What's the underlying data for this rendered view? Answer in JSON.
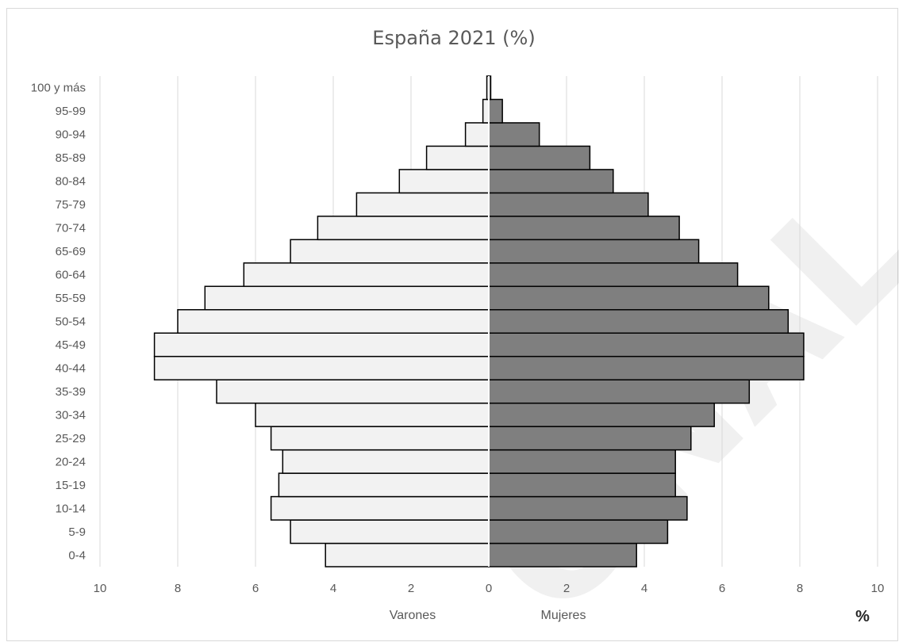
{
  "chart_data": {
    "type": "bar",
    "title": "España 2021 (%)",
    "categories": [
      "0-4",
      "5-9",
      "10-14",
      "15-19",
      "20-24",
      "25-29",
      "30-34",
      "35-39",
      "40-44",
      "45-49",
      "50-54",
      "55-59",
      "60-64",
      "65-69",
      "70-74",
      "75-79",
      "80-84",
      "85-89",
      "90-94",
      "95-99",
      "100 y más"
    ],
    "series": [
      {
        "name": "Varones",
        "color": "#f2f2f2",
        "values": [
          4.2,
          5.1,
          5.6,
          5.4,
          5.3,
          5.6,
          6.0,
          7.0,
          8.6,
          8.6,
          8.0,
          7.3,
          6.3,
          5.1,
          4.4,
          3.4,
          2.3,
          1.6,
          0.6,
          0.15,
          0.05
        ]
      },
      {
        "name": "Mujeres",
        "color": "#7f7f7f",
        "values": [
          3.8,
          4.6,
          5.1,
          4.8,
          4.8,
          5.2,
          5.8,
          6.7,
          8.1,
          8.1,
          7.7,
          7.2,
          6.4,
          5.4,
          4.9,
          4.1,
          3.2,
          2.6,
          1.3,
          0.35,
          0.05
        ]
      }
    ],
    "xlabel_left": "Varones",
    "xlabel_right": "Mujeres",
    "unit": "%",
    "xlim": [
      -10,
      10
    ],
    "ticks": [
      "10",
      "8",
      "6",
      "4",
      "2",
      "0",
      "2",
      "4",
      "6",
      "8",
      "10"
    ],
    "grid": true
  },
  "watermark": "ONAL"
}
